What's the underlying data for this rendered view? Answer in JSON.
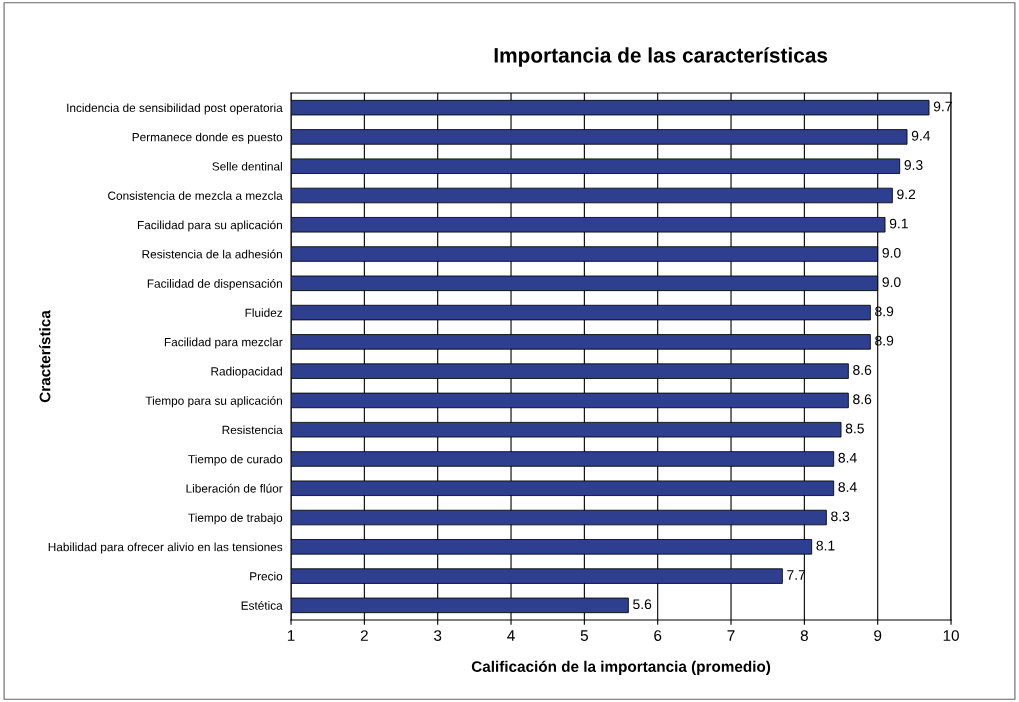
{
  "chart_data": {
    "type": "bar",
    "orientation": "horizontal",
    "title": "Importancia de las características",
    "xlabel": "Calificación de la importancia (promedio)",
    "ylabel": "Cracterística",
    "categories": [
      "Incidencia de sensibilidad post operatoria",
      "Permanece donde es puesto",
      "Selle dentinal",
      "Consistencia de mezcla a mezcla",
      "Facilidad para su aplicación",
      "Resistencia de la adhesión",
      "Facilidad de dispensación",
      "Fluidez",
      "Facilidad para mezclar",
      "Radiopacidad",
      "Tiempo para su aplicación",
      "Resistencia",
      "Tiempo de curado",
      "Liberación de flúor",
      "Tiempo de trabajo",
      "Habilidad para ofrecer alivio en las tensiones",
      "Precio",
      "Estética"
    ],
    "values": [
      9.7,
      9.4,
      9.3,
      9.2,
      9.1,
      9.0,
      9.0,
      8.9,
      8.9,
      8.6,
      8.6,
      8.5,
      8.4,
      8.4,
      8.3,
      8.1,
      7.7,
      5.6
    ],
    "value_labels": [
      "9.7",
      "9.4",
      "9.3",
      "9.2",
      "9.1",
      "9.0",
      "9.0",
      "8.9",
      "8.9",
      "8.6",
      "8.6",
      "8.5",
      "8.4",
      "8.4",
      "8.3",
      "8.1",
      "7.7",
      "5.6"
    ],
    "color": "#2e3f8f",
    "xlim": [
      1,
      10
    ],
    "xticks": [
      1,
      2,
      3,
      4,
      5,
      6,
      7,
      8,
      9,
      10
    ],
    "grid": "x",
    "legend": false
  }
}
